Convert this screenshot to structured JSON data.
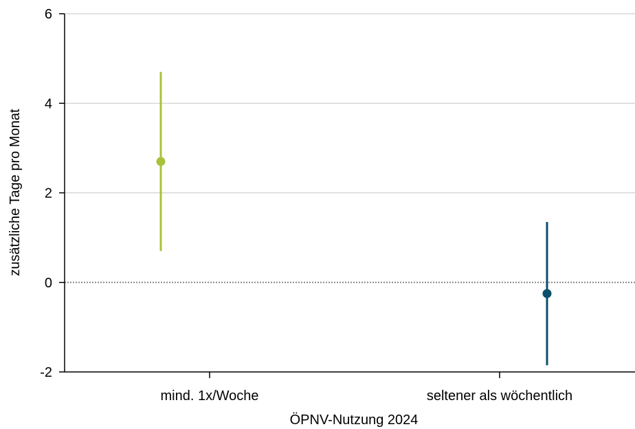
{
  "chart_data": {
    "type": "scatter",
    "subtype": "point-estimate-with-confidence-interval",
    "title": "",
    "xlabel": "ÖPNV-Nutzung 2024",
    "ylabel": "zusätzliche Tage pro Monat",
    "ylim": [
      -2,
      6
    ],
    "yticks": [
      -2,
      0,
      2,
      4,
      6
    ],
    "yticklabels": [
      "-2",
      "0",
      "2",
      "4",
      "6"
    ],
    "categories": [
      "mind. 1x/Woche",
      "seltener als wöchentlich"
    ],
    "points": [
      {
        "category": "mind. 1x/Woche",
        "estimate": 2.7,
        "lower": 0.7,
        "upper": 4.7,
        "color": "#a8c23a"
      },
      {
        "category": "seltener als wöchentlich",
        "estimate": -0.25,
        "lower": -1.85,
        "upper": 1.35,
        "color": "#0b4f6c"
      }
    ],
    "reference_line": {
      "y": 0,
      "style": "dotted",
      "color": "#8a8a8a"
    },
    "grid": {
      "horizontal": true,
      "vertical": false,
      "color": "#d0d0d0"
    },
    "legend": "none"
  }
}
